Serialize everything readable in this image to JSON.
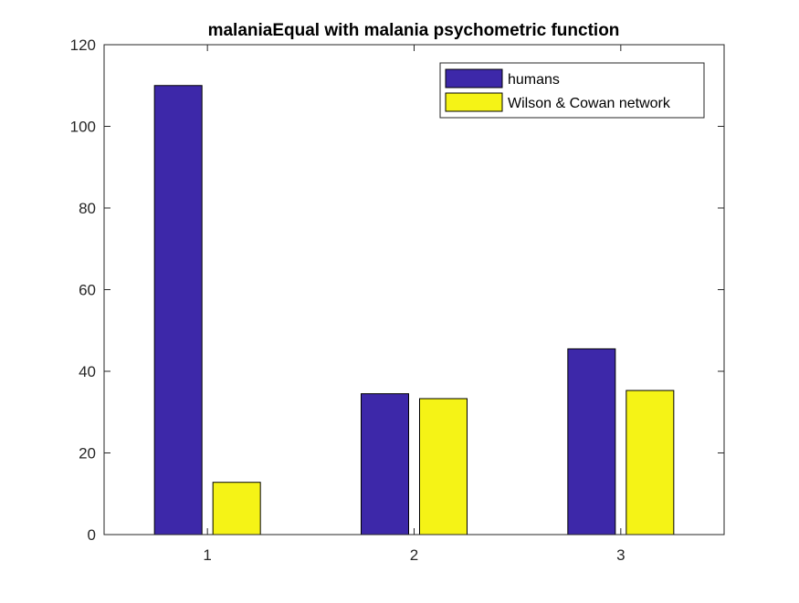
{
  "chart_data": {
    "type": "bar",
    "title": "malaniaEqual with malania psychometric function",
    "xlabel": "",
    "ylabel": "",
    "categories": [
      "1",
      "2",
      "3"
    ],
    "series": [
      {
        "name": "humans",
        "color": "#3d28a9",
        "values": [
          110,
          34.5,
          45.5
        ]
      },
      {
        "name": "Wilson & Cowan network",
        "color": "#f5f316",
        "values": [
          12.8,
          33.3,
          35.3
        ]
      }
    ],
    "ylim": [
      0,
      120
    ],
    "yticks": [
      "0",
      "20",
      "40",
      "60",
      "80",
      "100",
      "120"
    ],
    "grid": false,
    "legend_position": "top-right"
  }
}
